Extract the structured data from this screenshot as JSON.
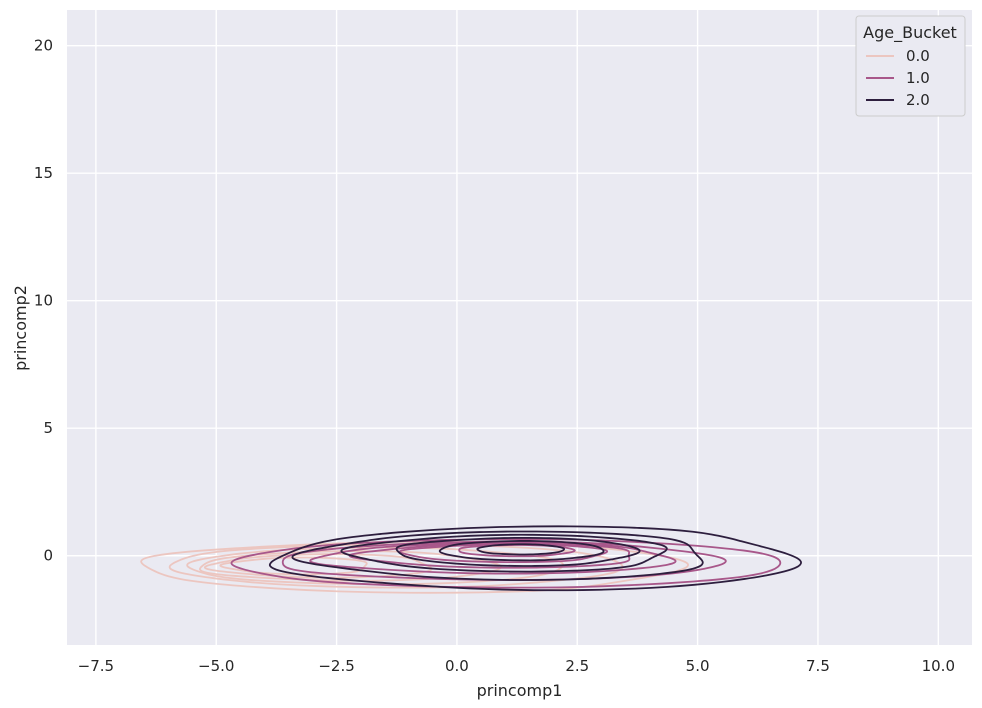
{
  "chart_data": {
    "type": "kde-contour",
    "xlabel": "princomp1",
    "ylabel": "princomp2",
    "xlim": [
      -8.1,
      10.7
    ],
    "ylim": [
      -3.5,
      21.4
    ],
    "x_ticks": [
      -7.5,
      -5.0,
      -2.5,
      0.0,
      2.5,
      5.0,
      7.5,
      10.0
    ],
    "x_tick_labels": [
      "−7.5",
      "−5.0",
      "−2.5",
      "0.0",
      "2.5",
      "5.0",
      "7.5",
      "10.0"
    ],
    "y_ticks": [
      0,
      5,
      10,
      15,
      20
    ],
    "y_tick_labels": [
      "0",
      "5",
      "10",
      "15",
      "20"
    ],
    "grid": true,
    "background": "#eaeaf2",
    "legend": {
      "title": "Age_Bucket",
      "placement": "top-right",
      "entries": [
        "0.0",
        "1.0",
        "2.0"
      ]
    },
    "series": [
      {
        "name": "0.0",
        "color": "#ecc6c0",
        "contours": [
          {
            "cx": -1.0,
            "cy": -0.45,
            "rx": 5.6,
            "ry": 1.0
          },
          {
            "cx": -1.4,
            "cy": -0.4,
            "rx": 4.7,
            "ry": 0.85
          },
          {
            "cx": -1.8,
            "cy": -0.4,
            "rx": 3.9,
            "ry": 0.72
          },
          {
            "cx": -2.3,
            "cy": -0.4,
            "rx": 3.1,
            "ry": 0.58
          },
          {
            "cx": -2.8,
            "cy": -0.4,
            "rx": 2.3,
            "ry": 0.46
          },
          {
            "cx": -3.3,
            "cy": -0.4,
            "rx": 1.5,
            "ry": 0.33
          }
        ]
      },
      {
        "name": "1.0",
        "color": "#a8578a",
        "contours": [
          {
            "cx": 0.9,
            "cy": -0.3,
            "rx": 5.7,
            "ry": 0.95
          },
          {
            "cx": 0.8,
            "cy": -0.2,
            "rx": 4.6,
            "ry": 0.75
          },
          {
            "cx": 0.8,
            "cy": -0.1,
            "rx": 3.7,
            "ry": 0.6
          },
          {
            "cx": 0.9,
            "cy": 0.0,
            "rx": 2.9,
            "ry": 0.47
          },
          {
            "cx": 1.0,
            "cy": 0.1,
            "rx": 2.1,
            "ry": 0.35
          },
          {
            "cx": 1.2,
            "cy": 0.2,
            "rx": 1.2,
            "ry": 0.22
          }
        ]
      },
      {
        "name": "2.0",
        "color": "#2d1e3e",
        "contours": [
          {
            "cx": 1.6,
            "cy": -0.1,
            "rx": 5.4,
            "ry": 1.25
          },
          {
            "cx": 1.1,
            "cy": 0.0,
            "rx": 4.2,
            "ry": 0.95
          },
          {
            "cx": 1.1,
            "cy": 0.1,
            "rx": 3.3,
            "ry": 0.72
          },
          {
            "cx": 1.2,
            "cy": 0.15,
            "rx": 2.5,
            "ry": 0.55
          },
          {
            "cx": 1.3,
            "cy": 0.2,
            "rx": 1.7,
            "ry": 0.38
          },
          {
            "cx": 1.3,
            "cy": 0.25,
            "rx": 0.9,
            "ry": 0.2
          }
        ]
      }
    ]
  }
}
